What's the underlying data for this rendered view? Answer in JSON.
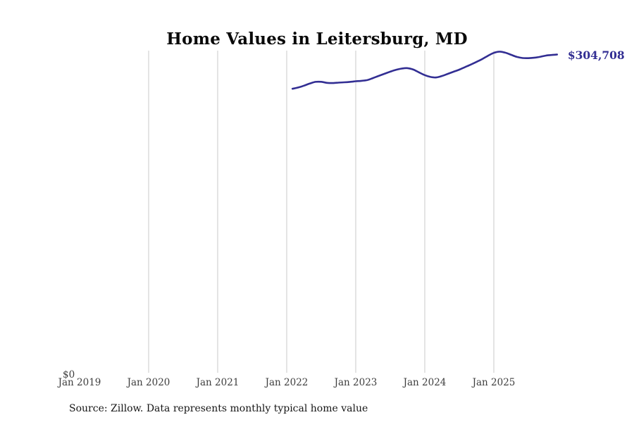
{
  "source_note": "Source: Zillow. Data represents monthly typical home value",
  "chart_data": {
    "type": "line",
    "title": "Home Values in Leitersburg, MD",
    "xlabel": "",
    "ylabel": "",
    "x_tick_labels": [
      "Jan 2019",
      "Jan 2020",
      "Jan 2021",
      "Jan 2022",
      "Jan 2023",
      "Jan 2024",
      "Jan 2025"
    ],
    "y_tick_labels": [
      "$0"
    ],
    "ylim": [
      0,
      308400
    ],
    "grid": "vertical-only",
    "legend": "none",
    "end_annotation": "$304,708",
    "colors": {
      "line": "#322e93",
      "annotation": "#322e93",
      "grid": "#cacaca",
      "tick_text": "#3d3d3d",
      "title_text": "#0a0a0a",
      "source_text": "#161616"
    },
    "series": [
      {
        "name": "Typical home value",
        "points": [
          {
            "date": "Feb 2022",
            "value": 272300
          },
          {
            "date": "Mar 2022",
            "value": 273500
          },
          {
            "date": "Apr 2022",
            "value": 275200
          },
          {
            "date": "May 2022",
            "value": 277200
          },
          {
            "date": "Jun 2022",
            "value": 278800
          },
          {
            "date": "Jul 2022",
            "value": 278900
          },
          {
            "date": "Aug 2022",
            "value": 277900
          },
          {
            "date": "Sep 2022",
            "value": 277700
          },
          {
            "date": "Oct 2022",
            "value": 278100
          },
          {
            "date": "Nov 2022",
            "value": 278400
          },
          {
            "date": "Dec 2022",
            "value": 278800
          },
          {
            "date": "Jan 2023",
            "value": 279400
          },
          {
            "date": "Feb 2023",
            "value": 279800
          },
          {
            "date": "Mar 2023",
            "value": 280500
          },
          {
            "date": "Apr 2023",
            "value": 282400
          },
          {
            "date": "May 2023",
            "value": 284500
          },
          {
            "date": "Jun 2023",
            "value": 286500
          },
          {
            "date": "Jul 2023",
            "value": 288500
          },
          {
            "date": "Aug 2023",
            "value": 290200
          },
          {
            "date": "Sep 2023",
            "value": 291400
          },
          {
            "date": "Oct 2023",
            "value": 291800
          },
          {
            "date": "Nov 2023",
            "value": 290500
          },
          {
            "date": "Dec 2023",
            "value": 287800
          },
          {
            "date": "Jan 2024",
            "value": 285200
          },
          {
            "date": "Feb 2024",
            "value": 283500
          },
          {
            "date": "Mar 2024",
            "value": 283000
          },
          {
            "date": "Apr 2024",
            "value": 284400
          },
          {
            "date": "May 2024",
            "value": 286400
          },
          {
            "date": "Jun 2024",
            "value": 288400
          },
          {
            "date": "Jul 2024",
            "value": 290400
          },
          {
            "date": "Aug 2024",
            "value": 292800
          },
          {
            "date": "Sep 2024",
            "value": 295200
          },
          {
            "date": "Oct 2024",
            "value": 297800
          },
          {
            "date": "Nov 2024",
            "value": 300500
          },
          {
            "date": "Dec 2024",
            "value": 303600
          },
          {
            "date": "Jan 2025",
            "value": 306300
          },
          {
            "date": "Feb 2025",
            "value": 307500
          },
          {
            "date": "Mar 2025",
            "value": 306500
          },
          {
            "date": "Apr 2025",
            "value": 304500
          },
          {
            "date": "May 2025",
            "value": 302500
          },
          {
            "date": "Jun 2025",
            "value": 301400
          },
          {
            "date": "Jul 2025",
            "value": 301300
          },
          {
            "date": "Aug 2025",
            "value": 301700
          },
          {
            "date": "Sep 2025",
            "value": 302500
          },
          {
            "date": "Oct 2025",
            "value": 303700
          },
          {
            "date": "Nov 2025",
            "value": 304300
          },
          {
            "date": "Dec 2025",
            "value": 304708
          }
        ]
      }
    ]
  }
}
